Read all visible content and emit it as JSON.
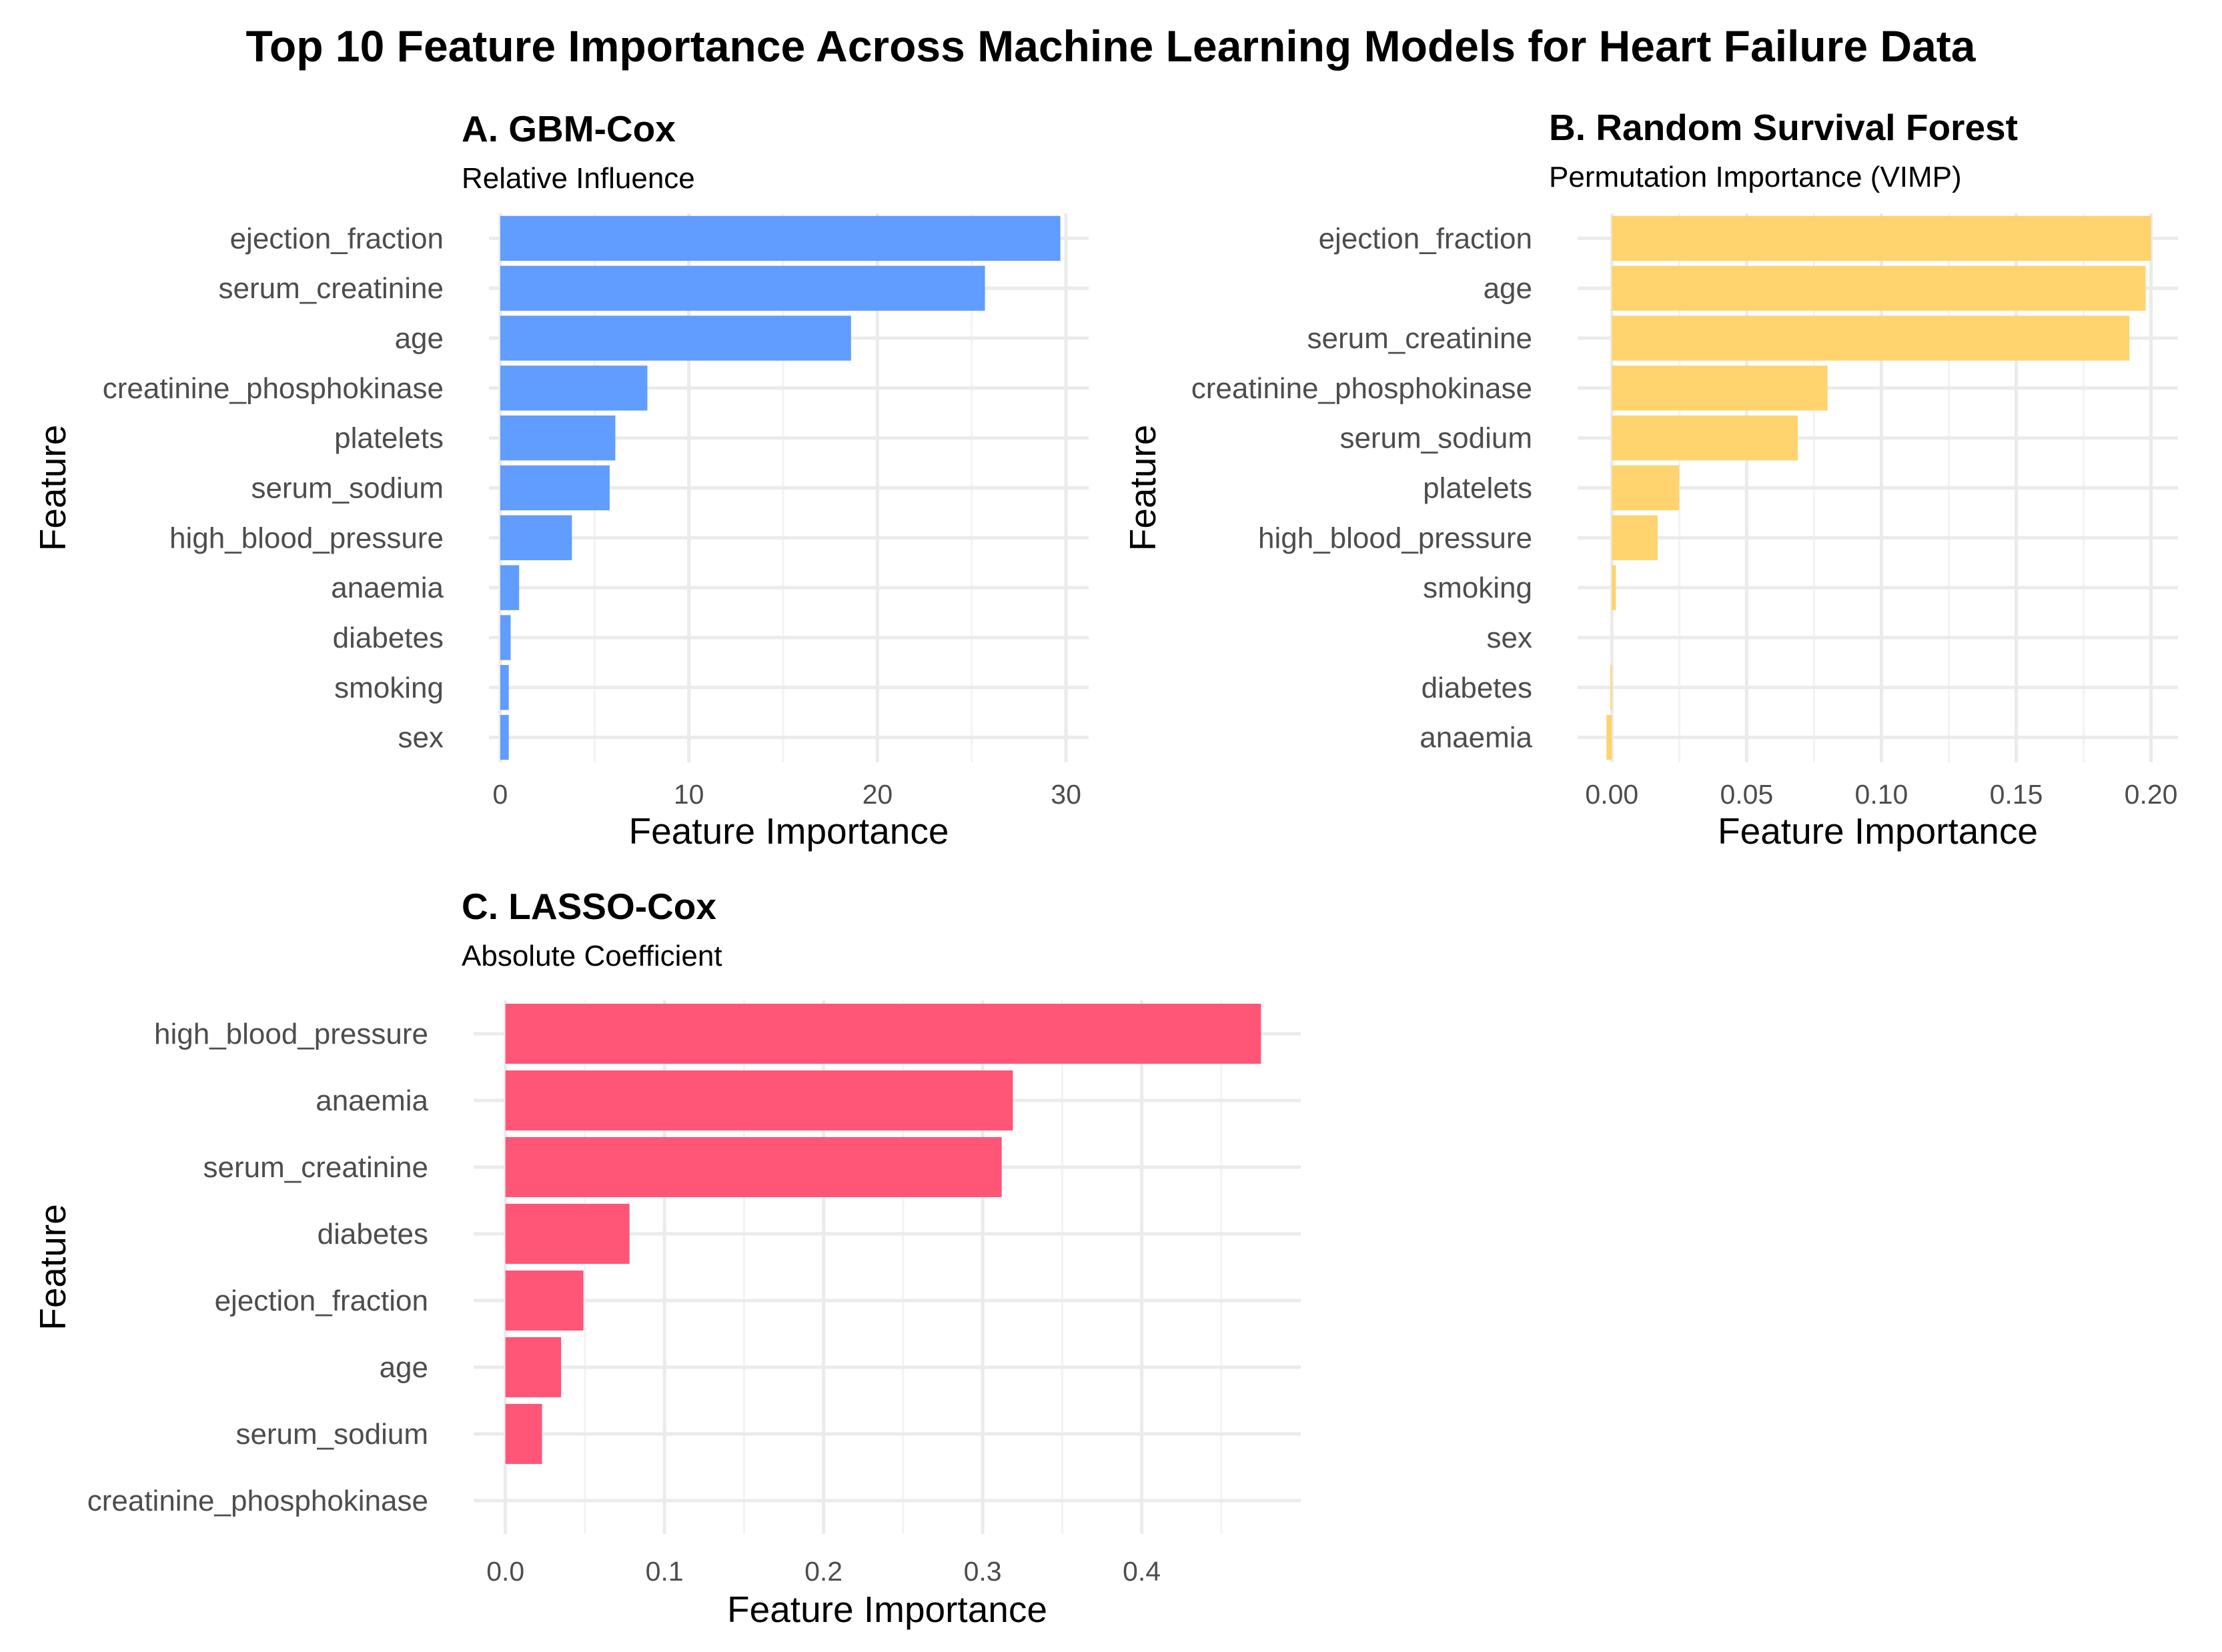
{
  "title": "Top 10 Feature Importance Across Machine Learning Models for Heart Failure Data",
  "colors": {
    "gbm": "#619CFF",
    "rsf": "#FFD36E",
    "lasso": "#FF5577"
  },
  "chart_data": [
    {
      "type": "bar",
      "orientation": "horizontal",
      "title": "A. GBM-Cox",
      "subtitle": "Relative Influence",
      "xlabel": "Feature Importance",
      "ylabel": "Feature",
      "categories": [
        "ejection_fraction",
        "serum_creatinine",
        "age",
        "creatinine_phosphokinase",
        "platelets",
        "serum_sodium",
        "high_blood_pressure",
        "anaemia",
        "diabetes",
        "smoking",
        "sex"
      ],
      "values": [
        29.7,
        25.7,
        18.6,
        7.8,
        6.1,
        5.8,
        3.8,
        1.0,
        0.55,
        0.45,
        0.45
      ],
      "xlim": [
        -0.6,
        31.2
      ],
      "xticks": [
        0,
        10,
        20,
        30
      ],
      "xtick_labels": [
        "0",
        "10",
        "20",
        "30"
      ],
      "grid": true,
      "color": "#619CFF"
    },
    {
      "type": "bar",
      "orientation": "horizontal",
      "title": "B. Random Survival Forest",
      "subtitle": "Permutation Importance (VIMP)",
      "xlabel": "Feature Importance",
      "ylabel": "Feature",
      "categories": [
        "ejection_fraction",
        "age",
        "serum_creatinine",
        "creatinine_phosphokinase",
        "serum_sodium",
        "platelets",
        "high_blood_pressure",
        "smoking",
        "sex",
        "diabetes",
        "anaemia"
      ],
      "values": [
        0.2,
        0.198,
        0.192,
        0.08,
        0.069,
        0.025,
        0.017,
        0.0015,
        0.0,
        -0.0005,
        -0.002
      ],
      "xlim": [
        -0.0127,
        0.21
      ],
      "xticks": [
        0.0,
        0.05,
        0.1,
        0.15,
        0.2
      ],
      "xtick_labels": [
        "0.00",
        "0.05",
        "0.10",
        "0.15",
        "0.20"
      ],
      "grid": true,
      "color": "#FFD36E"
    },
    {
      "type": "bar",
      "orientation": "horizontal",
      "title": "C. LASSO-Cox",
      "subtitle": "Absolute Coefficient",
      "xlabel": "Feature Importance",
      "ylabel": "Feature",
      "categories": [
        "high_blood_pressure",
        "anaemia",
        "serum_creatinine",
        "diabetes",
        "ejection_fraction",
        "age",
        "serum_sodium",
        "creatinine_phosphokinase"
      ],
      "values": [
        0.475,
        0.319,
        0.312,
        0.078,
        0.049,
        0.035,
        0.023,
        0.0
      ],
      "xlim": [
        -0.02,
        0.5
      ],
      "xticks": [
        0.0,
        0.1,
        0.2,
        0.3,
        0.4
      ],
      "xtick_labels": [
        "0.0",
        "0.1",
        "0.2",
        "0.3",
        "0.4"
      ],
      "grid": true,
      "color": "#FF5577"
    }
  ]
}
